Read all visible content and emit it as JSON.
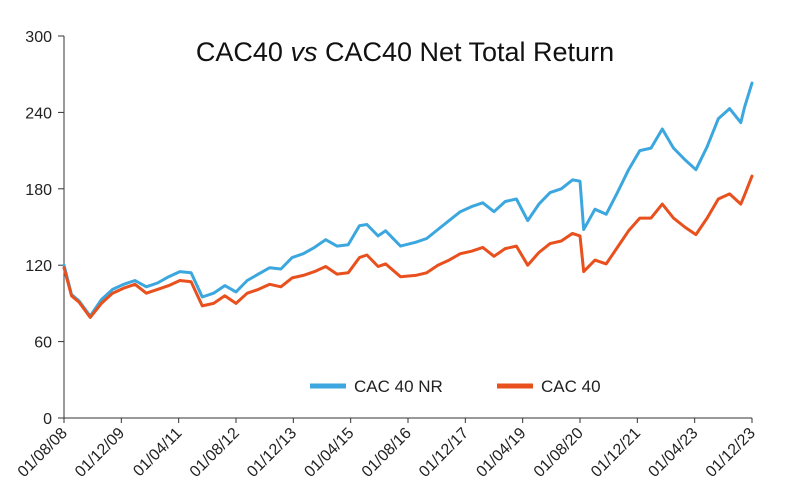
{
  "chart_data": {
    "type": "line",
    "title_parts": [
      "CAC40 ",
      "vs",
      " CAC40 Net Total Return"
    ],
    "xlabel": "",
    "ylabel": "",
    "ylim": [
      0,
      300
    ],
    "yticks": [
      "0",
      "60",
      "120",
      "180",
      "240",
      "300"
    ],
    "xlim": [
      "2008-08",
      "2023-12"
    ],
    "xticks": [
      "01/08/08",
      "01/12/09",
      "01/04/11",
      "01/08/12",
      "01/12/13",
      "01/04/15",
      "01/08/16",
      "01/12/17",
      "01/04/19",
      "01/08/20",
      "01/12/21",
      "01/04/23",
      "01/12/23"
    ],
    "grid": false,
    "legend": "bottom-right",
    "series": [
      {
        "name": "CAC 40 NR",
        "color": "#3ca7de",
        "points": [
          [
            "2008-08",
            120
          ],
          [
            "2008-10",
            97
          ],
          [
            "2008-12",
            92
          ],
          [
            "2009-03",
            80
          ],
          [
            "2009-06",
            93
          ],
          [
            "2009-09",
            101
          ],
          [
            "2009-12",
            105
          ],
          [
            "2010-03",
            108
          ],
          [
            "2010-06",
            103
          ],
          [
            "2010-09",
            106
          ],
          [
            "2010-12",
            111
          ],
          [
            "2011-03",
            115
          ],
          [
            "2011-06",
            114
          ],
          [
            "2011-09",
            95
          ],
          [
            "2011-12",
            98
          ],
          [
            "2012-03",
            104
          ],
          [
            "2012-06",
            99
          ],
          [
            "2012-09",
            108
          ],
          [
            "2012-12",
            113
          ],
          [
            "2013-03",
            118
          ],
          [
            "2013-06",
            117
          ],
          [
            "2013-09",
            126
          ],
          [
            "2013-12",
            129
          ],
          [
            "2014-03",
            134
          ],
          [
            "2014-06",
            140
          ],
          [
            "2014-09",
            135
          ],
          [
            "2014-12",
            136
          ],
          [
            "2015-03",
            151
          ],
          [
            "2015-05",
            152
          ],
          [
            "2015-08",
            143
          ],
          [
            "2015-10",
            147
          ],
          [
            "2016-02",
            135
          ],
          [
            "2016-06",
            138
          ],
          [
            "2016-09",
            141
          ],
          [
            "2016-12",
            148
          ],
          [
            "2017-03",
            155
          ],
          [
            "2017-06",
            162
          ],
          [
            "2017-09",
            166
          ],
          [
            "2017-12",
            169
          ],
          [
            "2018-03",
            162
          ],
          [
            "2018-06",
            170
          ],
          [
            "2018-09",
            172
          ],
          [
            "2018-12",
            155
          ],
          [
            "2019-03",
            168
          ],
          [
            "2019-06",
            177
          ],
          [
            "2019-09",
            180
          ],
          [
            "2019-12",
            187
          ],
          [
            "2020-02",
            186
          ],
          [
            "2020-03",
            148
          ],
          [
            "2020-06",
            164
          ],
          [
            "2020-09",
            160
          ],
          [
            "2020-12",
            177
          ],
          [
            "2021-03",
            195
          ],
          [
            "2021-06",
            210
          ],
          [
            "2021-09",
            212
          ],
          [
            "2021-12",
            227
          ],
          [
            "2022-03",
            212
          ],
          [
            "2022-06",
            203
          ],
          [
            "2022-09",
            195
          ],
          [
            "2022-12",
            213
          ],
          [
            "2023-03",
            235
          ],
          [
            "2023-06",
            243
          ],
          [
            "2023-09",
            232
          ],
          [
            "2023-10",
            244
          ],
          [
            "2023-12",
            263
          ]
        ]
      },
      {
        "name": "CAC 40",
        "color": "#e8501e",
        "points": [
          [
            "2008-08",
            118
          ],
          [
            "2008-10",
            96
          ],
          [
            "2008-12",
            91
          ],
          [
            "2009-03",
            79
          ],
          [
            "2009-06",
            90
          ],
          [
            "2009-09",
            98
          ],
          [
            "2009-12",
            102
          ],
          [
            "2010-03",
            105
          ],
          [
            "2010-06",
            98
          ],
          [
            "2010-09",
            101
          ],
          [
            "2010-12",
            104
          ],
          [
            "2011-03",
            108
          ],
          [
            "2011-06",
            107
          ],
          [
            "2011-09",
            88
          ],
          [
            "2011-12",
            90
          ],
          [
            "2012-03",
            96
          ],
          [
            "2012-06",
            90
          ],
          [
            "2012-09",
            98
          ],
          [
            "2012-12",
            101
          ],
          [
            "2013-03",
            105
          ],
          [
            "2013-06",
            103
          ],
          [
            "2013-09",
            110
          ],
          [
            "2013-12",
            112
          ],
          [
            "2014-03",
            115
          ],
          [
            "2014-06",
            119
          ],
          [
            "2014-09",
            113
          ],
          [
            "2014-12",
            114
          ],
          [
            "2015-03",
            126
          ],
          [
            "2015-05",
            128
          ],
          [
            "2015-08",
            119
          ],
          [
            "2015-10",
            121
          ],
          [
            "2016-02",
            111
          ],
          [
            "2016-06",
            112
          ],
          [
            "2016-09",
            114
          ],
          [
            "2016-12",
            120
          ],
          [
            "2017-03",
            124
          ],
          [
            "2017-06",
            129
          ],
          [
            "2017-09",
            131
          ],
          [
            "2017-12",
            134
          ],
          [
            "2018-03",
            127
          ],
          [
            "2018-06",
            133
          ],
          [
            "2018-09",
            135
          ],
          [
            "2018-12",
            120
          ],
          [
            "2019-03",
            130
          ],
          [
            "2019-06",
            137
          ],
          [
            "2019-09",
            139
          ],
          [
            "2019-12",
            145
          ],
          [
            "2020-02",
            143
          ],
          [
            "2020-03",
            115
          ],
          [
            "2020-06",
            124
          ],
          [
            "2020-09",
            121
          ],
          [
            "2020-12",
            134
          ],
          [
            "2021-03",
            147
          ],
          [
            "2021-06",
            157
          ],
          [
            "2021-09",
            157
          ],
          [
            "2021-12",
            168
          ],
          [
            "2022-03",
            157
          ],
          [
            "2022-06",
            150
          ],
          [
            "2022-09",
            144
          ],
          [
            "2022-12",
            157
          ],
          [
            "2023-03",
            172
          ],
          [
            "2023-06",
            176
          ],
          [
            "2023-09",
            168
          ],
          [
            "2023-10",
            175
          ],
          [
            "2023-12",
            190
          ]
        ]
      }
    ]
  }
}
